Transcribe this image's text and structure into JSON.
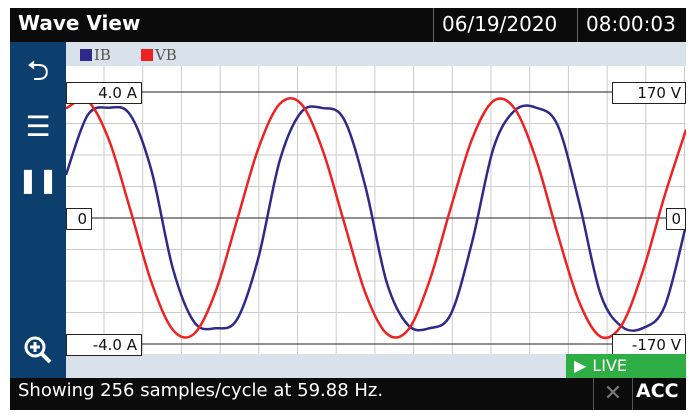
{
  "header": {
    "title": "Wave View",
    "date": "06/19/2020",
    "time": "08:00:03"
  },
  "sidebar": {
    "items": [
      {
        "icon": "back-icon"
      },
      {
        "icon": "menu-icon"
      },
      {
        "icon": "pause-icon"
      },
      {
        "icon": "zoom-in-icon"
      }
    ]
  },
  "live_label": "LIVE",
  "status": {
    "text": "Showing 256 samples/cycle at 59.88 Hz.",
    "acc": "ACC"
  },
  "colors": {
    "IB": "#2e2a8a",
    "VB": "#ee2222",
    "sidebar": "#0c3f6e",
    "live": "#2fae45"
  },
  "chart_data": {
    "type": "line",
    "legend": [
      {
        "name": "IB",
        "color": "#2e2a8a"
      },
      {
        "name": "VB",
        "color": "#ee2222"
      }
    ],
    "left_axis": {
      "top": "4.0  A",
      "zero": "0",
      "bottom": "-4.0  A",
      "ylim": [
        -4,
        4
      ]
    },
    "right_axis": {
      "top": "170  V",
      "zero": "0",
      "bottom": "-170  V",
      "ylim": [
        -170,
        170
      ]
    },
    "grid": true,
    "series": [
      {
        "name": "IB",
        "axis": "left",
        "values": [
          1.37,
          3.25,
          3.5,
          3.28,
          1.5,
          -1.61,
          -3.31,
          -3.5,
          -3.22,
          -1.26,
          1.83,
          3.36,
          3.49,
          3.14,
          1.01,
          -2.04,
          -3.4,
          -3.5,
          -3.05,
          -0.75,
          2.23,
          3.42,
          3.5,
          2.94,
          0.5,
          -2.41,
          -3.45,
          -3.49,
          -2.81,
          -0.23
        ]
      },
      {
        "name": "VB",
        "axis": "right",
        "values": [
          148,
          158,
          106,
          12,
          -87,
          -151,
          -156,
          -99,
          -3,
          94,
          154,
          154,
          92,
          -5,
          -101,
          -156,
          -151,
          -85,
          14,
          107,
          158,
          147,
          78,
          -22,
          -113,
          -160,
          -144,
          -70,
          30,
          119
        ]
      }
    ]
  }
}
